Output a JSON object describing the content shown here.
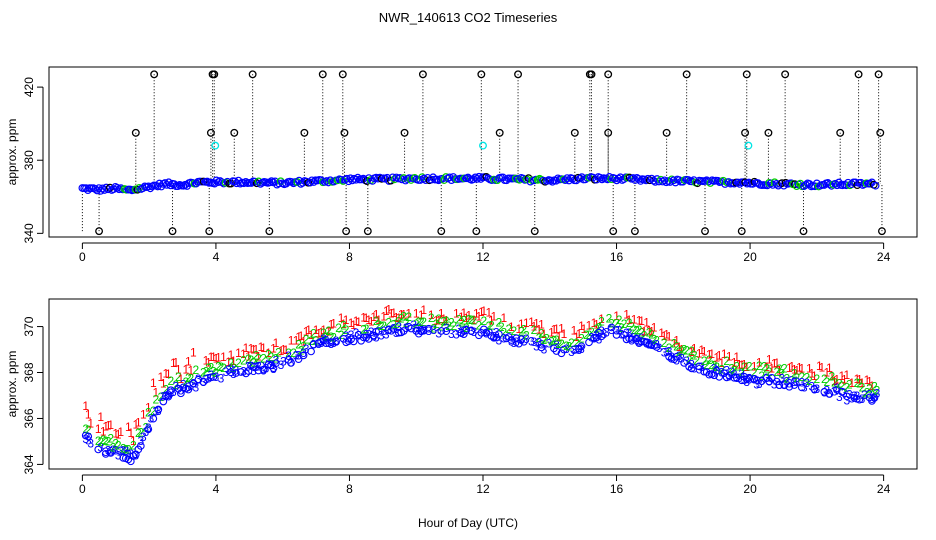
{
  "chart_data": {
    "title": "NWR_140613  CO2 Timeseries",
    "xlabel": "Hour of Day (UTC)",
    "xlim": [
      -1,
      25
    ],
    "x_ticks": [
      0,
      4,
      8,
      12,
      16,
      20,
      24
    ],
    "x_tick_labels": [
      "0",
      "4",
      "8",
      "12",
      "16",
      "20",
      "24"
    ],
    "colors": {
      "black": "#000000",
      "blue": "#0000ff",
      "green": "#00cc00",
      "red": "#ff0000",
      "cyan": "#00e5e5"
    },
    "panels": [
      {
        "type": "scatter",
        "ylabel": "approx. ppm",
        "ylim": [
          338,
          431
        ],
        "y_ticks": [
          340,
          380,
          420
        ],
        "y_tick_labels": [
          "340",
          "380",
          "420"
        ],
        "baseline": [
          [
            0,
            364.5
          ],
          [
            0.5,
            364
          ],
          [
            1,
            364.5
          ],
          [
            1.4,
            363.5
          ],
          [
            2,
            365.5
          ],
          [
            2.5,
            367
          ],
          [
            3,
            366.5
          ],
          [
            3.5,
            368
          ],
          [
            4,
            368
          ],
          [
            5,
            368
          ],
          [
            6,
            367.5
          ],
          [
            7,
            368.5
          ],
          [
            7.8,
            369
          ],
          [
            8,
            369.5
          ],
          [
            9,
            369.5
          ],
          [
            10,
            370
          ],
          [
            11,
            370
          ],
          [
            12,
            370
          ],
          [
            13,
            369.5
          ],
          [
            14,
            369
          ],
          [
            15,
            370
          ],
          [
            15.9,
            370
          ],
          [
            16,
            370
          ],
          [
            17,
            369
          ],
          [
            18,
            368.5
          ],
          [
            19,
            368
          ],
          [
            19.8,
            368
          ],
          [
            20,
            367.5
          ],
          [
            21,
            367
          ],
          [
            22,
            366.5
          ],
          [
            23,
            367
          ],
          [
            23.8,
            367
          ]
        ],
        "high_outliers": [
          2.15,
          3.9,
          3.95,
          5.1,
          7.2,
          7.8,
          10.2,
          11.95,
          13.05,
          15.2,
          15.25,
          15.75,
          18.1,
          19.9,
          21.05,
          23.25,
          23.85
        ],
        "mid_outliers": [
          1.6,
          3.85,
          4.55,
          6.65,
          7.85,
          9.65,
          12.5,
          14.75,
          15.75,
          17.5,
          19.85,
          20.55,
          22.7,
          23.9
        ],
        "low_outliers": [
          0.5,
          2.7,
          3.8,
          5.6,
          7.9,
          8.55,
          10.75,
          11.8,
          13.55,
          15.9,
          16.55,
          18.65,
          19.75,
          21.6,
          23.95
        ],
        "cyan_points": [
          [
            3.98,
            388
          ],
          [
            12.0,
            388
          ],
          [
            19.95,
            388
          ]
        ]
      },
      {
        "type": "scatter",
        "ylabel": "approx. ppm",
        "ylim": [
          363.8,
          371.2
        ],
        "y_ticks": [
          364,
          366,
          368,
          370
        ],
        "y_tick_labels": [
          "364",
          "366",
          "368",
          "370"
        ],
        "series": [
          {
            "name": "1",
            "color": "#ff0000",
            "symbol": "1"
          },
          {
            "name": "2",
            "color": "#00cc00",
            "symbol": "2"
          },
          {
            "name": "3",
            "color": "#0000ff",
            "symbol": "3"
          }
        ],
        "baseline": [
          [
            0.1,
            365.4
          ],
          [
            0.4,
            364.8
          ],
          [
            0.8,
            364.7
          ],
          [
            1.2,
            364.6
          ],
          [
            1.5,
            364.4
          ],
          [
            1.8,
            365.2
          ],
          [
            2.1,
            366.2
          ],
          [
            2.4,
            367
          ],
          [
            2.7,
            367.3
          ],
          [
            3,
            367.4
          ],
          [
            3.5,
            367.7
          ],
          [
            4,
            367.9
          ],
          [
            4.5,
            368.1
          ],
          [
            5,
            368.3
          ],
          [
            5.5,
            368.4
          ],
          [
            6,
            368.5
          ],
          [
            6.5,
            368.9
          ],
          [
            7,
            369.3
          ],
          [
            7.5,
            369.5
          ],
          [
            8,
            369.6
          ],
          [
            8.5,
            369.7
          ],
          [
            9,
            369.9
          ],
          [
            9.5,
            370
          ],
          [
            10,
            370
          ],
          [
            10.5,
            369.9
          ],
          [
            11,
            369.9
          ],
          [
            11.5,
            369.9
          ],
          [
            12,
            369.9
          ],
          [
            12.5,
            369.7
          ],
          [
            13,
            369.5
          ],
          [
            13.5,
            369.4
          ],
          [
            14,
            369.2
          ],
          [
            14.5,
            369
          ],
          [
            15,
            369.2
          ],
          [
            15.5,
            369.8
          ],
          [
            15.8,
            370
          ],
          [
            16,
            369.9
          ],
          [
            16.5,
            369.6
          ],
          [
            17,
            369.4
          ],
          [
            17.5,
            369
          ],
          [
            18,
            368.6
          ],
          [
            18.5,
            368.3
          ],
          [
            19,
            368.1
          ],
          [
            19.5,
            368
          ],
          [
            20,
            367.8
          ],
          [
            20.5,
            367.8
          ],
          [
            21,
            367.7
          ],
          [
            21.5,
            367.6
          ],
          [
            22,
            367.5
          ],
          [
            22.5,
            367.3
          ],
          [
            23,
            367.1
          ],
          [
            23.5,
            367
          ],
          [
            23.8,
            367
          ]
        ]
      }
    ]
  }
}
